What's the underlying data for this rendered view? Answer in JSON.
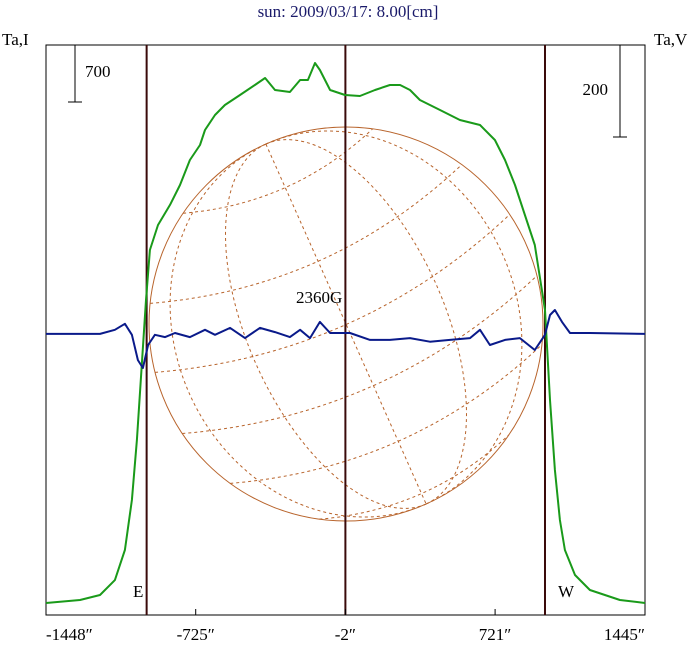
{
  "chart_data": {
    "type": "line",
    "title": "sun: 2009/03/17: 8.00[cm]",
    "y_label": "Ta,I",
    "y2_label": "Ta,V",
    "xlim": [
      -1448,
      1445
    ],
    "xticks": [
      {
        "value": -1448,
        "label": "-1448″"
      },
      {
        "value": -725,
        "label": "-725″"
      },
      {
        "value": -2,
        "label": "-2″"
      },
      {
        "value": 721,
        "label": "721″"
      },
      {
        "value": 1445,
        "label": "1445″"
      }
    ],
    "ylim": [
      -147,
      6852
    ],
    "y2lim": [
      -611,
      628
    ],
    "scale_left": 700,
    "scale_right": 200,
    "vlines": [
      -962,
      -2,
      962
    ],
    "annotations": {
      "east": "E",
      "west": "W",
      "field": "2360G"
    },
    "series": [
      {
        "color": "#1a9a1a",
        "x": [
          -1448,
          -1284,
          -1187,
          -1115,
          -1067,
          -1033,
          -1009,
          -984,
          -965,
          -946,
          -907,
          -849,
          -801,
          -753,
          -704,
          -680,
          -632,
          -584,
          -511,
          -439,
          -390,
          -342,
          -270,
          -221,
          -183,
          -149,
          -125,
          -76,
          -4,
          68,
          141,
          213,
          262,
          310,
          358,
          455,
          551,
          648,
          720,
          769,
          817,
          865,
          913,
          962,
          986,
          1010,
          1034,
          1058,
          1107,
          1179,
          1324,
          1445
        ],
        "values": [
          0,
          37,
          98,
          282,
          651,
          1265,
          2002,
          2984,
          3721,
          4335,
          4642,
          4888,
          5133,
          5440,
          5624,
          5808,
          5993,
          6115,
          6238,
          6361,
          6447,
          6300,
          6275,
          6422,
          6422,
          6631,
          6545,
          6300,
          6238,
          6226,
          6300,
          6361,
          6361,
          6300,
          6177,
          6054,
          5931,
          5870,
          5686,
          5440,
          5133,
          4765,
          4396,
          3598,
          2493,
          1633,
          1019,
          651,
          344,
          160,
          37,
          0
        ]
      },
      {
        "color": "#0a1a8a",
        "axis": "y2",
        "x": [
          -1448,
          -1187,
          -1115,
          -1067,
          -1033,
          -1004,
          -980,
          -955,
          -922,
          -873,
          -825,
          -753,
          -680,
          -632,
          -559,
          -487,
          -415,
          -342,
          -270,
          -221,
          -173,
          -125,
          -76,
          20,
          117,
          213,
          310,
          406,
          503,
          600,
          648,
          696,
          769,
          841,
          913,
          962,
          986,
          1010,
          1044,
          1083,
          1179,
          1445
        ],
        "values": [
          0,
          0,
          9,
          22,
          -2,
          -57,
          -74,
          -24,
          -2,
          -7,
          2,
          -7,
          9,
          -2,
          13,
          -9,
          13,
          4,
          -7,
          9,
          -9,
          26,
          2,
          2,
          -13,
          -13,
          -9,
          -17,
          -13,
          -9,
          9,
          -24,
          -13,
          -9,
          -35,
          -2,
          41,
          52,
          26,
          2,
          2,
          0
        ]
      }
    ]
  }
}
